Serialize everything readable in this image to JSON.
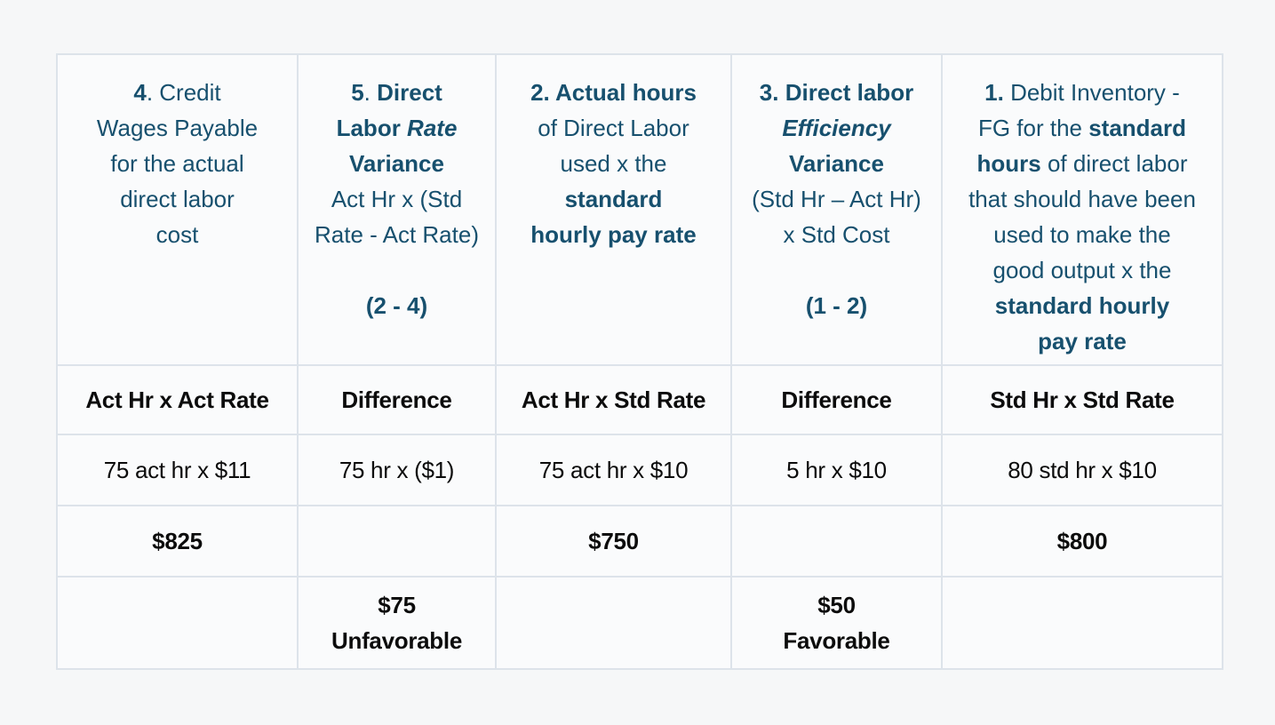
{
  "colors": {
    "header_text": "#17506e",
    "body_text": "#0c0c0c",
    "cell_border": "#dde3ea",
    "cell_background": "#fafbfc",
    "page_background": "#f6f7f8"
  },
  "table": {
    "header_cells": [
      {
        "runs": [
          {
            "t": "4",
            "b": true
          },
          {
            "t": ". Credit\nWages Payable\nfor the actual\ndirect labor\ncost",
            "b": false
          }
        ]
      },
      {
        "runs": [
          {
            "t": "5",
            "b": true
          },
          {
            "t": ". ",
            "b": false
          },
          {
            "t": "Direct\nLabor ",
            "b": true
          },
          {
            "t": "Rate",
            "b": true,
            "i": true
          },
          {
            "t": "\n",
            "b": false
          },
          {
            "t": "Variance",
            "b": true
          },
          {
            "t": "\nAct Hr x (Std\nRate - Act Rate)\n\n",
            "b": false
          },
          {
            "t": "(2 - 4)",
            "b": true
          }
        ]
      },
      {
        "runs": [
          {
            "t": "2. Actual hours",
            "b": true
          },
          {
            "t": "\nof Direct Labor\nused x the\n",
            "b": false
          },
          {
            "t": "standard\nhourly pay rate",
            "b": true
          }
        ]
      },
      {
        "runs": [
          {
            "t": "3. Direct labor",
            "b": true
          },
          {
            "t": "\n",
            "b": false
          },
          {
            "t": "Efficiency",
            "b": true,
            "i": true
          },
          {
            "t": "\n",
            "b": false
          },
          {
            "t": "Variance",
            "b": true
          },
          {
            "t": "\n(Std Hr – Act Hr)\nx Std Cost\n\n",
            "b": false
          },
          {
            "t": "(1 - 2)",
            "b": true
          }
        ]
      },
      {
        "runs": [
          {
            "t": "1.",
            "b": true
          },
          {
            "t": " Debit Inventory -\nFG for the ",
            "b": false
          },
          {
            "t": "standard\nhours",
            "b": true
          },
          {
            "t": " of direct labor\nthat should have been\nused to make the\ngood output x the\n",
            "b": false
          },
          {
            "t": "standard hourly\npay rate",
            "b": true
          }
        ]
      }
    ],
    "body_rows": [
      {
        "cells": [
          "Act Hr x Act Rate",
          "Difference",
          "Act Hr x Std Rate",
          "Difference",
          "Std Hr x Std Rate"
        ]
      },
      {
        "cells": [
          "75 act hr x $11",
          "75 hr x ($1)",
          "75 act hr x $10",
          "5 hr x $10",
          "80 std hr x $10"
        ]
      },
      {
        "cells": [
          "$825",
          "",
          "$750",
          "",
          "$800"
        ]
      },
      {
        "cells": [
          "",
          "$75\nUnfavorable",
          "",
          "$50\nFavorable",
          ""
        ]
      }
    ]
  }
}
